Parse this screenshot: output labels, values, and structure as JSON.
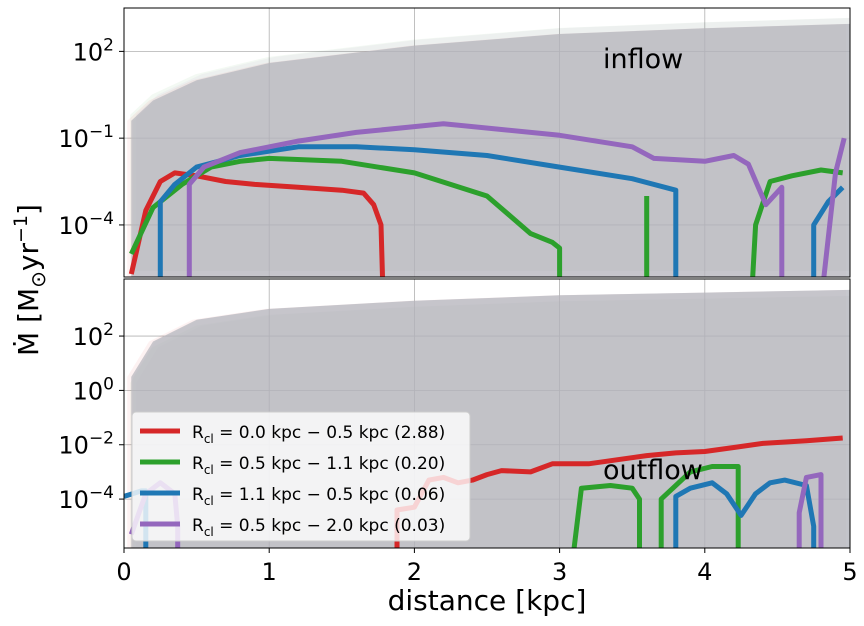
{
  "chart_data": [
    {
      "type": "line",
      "panel": "top",
      "annotation": "inflow",
      "xlim": [
        0,
        5
      ],
      "ylim_log10": [
        -5.8,
        3.5
      ],
      "yscale": "log",
      "ytick_labels": [
        {
          "exp": -4,
          "text": "10",
          "sup": "−4"
        },
        {
          "exp": -1,
          "text": "10",
          "sup": "−1"
        },
        {
          "exp": 2,
          "text": "10",
          "sup": "2"
        }
      ],
      "grid": true,
      "band": {
        "x": [
          0.05,
          0.2,
          0.5,
          1.0,
          2.0,
          3.0,
          4.0,
          5.0
        ],
        "upper_log10": [
          -0.4,
          0.3,
          1.0,
          1.6,
          2.2,
          2.6,
          2.8,
          2.95
        ],
        "lower_log10": [
          -5.8,
          -5.8,
          -5.8,
          -5.8,
          -5.8,
          -5.8,
          -5.8,
          -5.8
        ]
      },
      "series": [
        {
          "name": "R_cl = 0.0 kpc − 0.5 kpc (2.88)",
          "color": "#d62728",
          "x": [
            0.05,
            0.15,
            0.25,
            0.35,
            0.5,
            0.7,
            0.9,
            1.2,
            1.5,
            1.65,
            1.72,
            1.77,
            1.78
          ],
          "log10": [
            -5.7,
            -3.5,
            -2.5,
            -2.2,
            -2.3,
            -2.5,
            -2.6,
            -2.7,
            -2.8,
            -2.9,
            -3.3,
            -4.0,
            -5.8
          ]
        },
        {
          "name": "R_cl = 0.5 kpc − 1.1 kpc (0.20)",
          "color": "#2ca02c",
          "x": [
            0.05,
            0.2,
            0.4,
            0.6,
            0.8,
            1.0,
            1.5,
            2.0,
            2.5,
            2.8,
            2.95,
            3.0,
            3.0,
            null,
            3.6,
            3.6,
            null,
            4.33,
            4.35,
            4.45,
            4.6,
            4.8,
            4.95
          ],
          "log10": [
            -5.0,
            -3.4,
            -2.6,
            -2.0,
            -1.8,
            -1.7,
            -1.8,
            -2.2,
            -3.0,
            -4.3,
            -4.6,
            -4.8,
            -5.8,
            null,
            -3.0,
            -5.8,
            null,
            -5.8,
            -4.0,
            -2.5,
            -2.3,
            -2.1,
            -2.2
          ]
        },
        {
          "name": "R_cl = 1.1 kpc − 0.5 kpc (0.06)",
          "color": "#1f77b4",
          "x": [
            0.25,
            0.25,
            0.35,
            0.5,
            0.8,
            1.2,
            1.6,
            2.0,
            2.5,
            3.0,
            3.5,
            3.8,
            3.8,
            null,
            4.75,
            4.75,
            4.85,
            4.95
          ],
          "log10": [
            -5.8,
            -3.2,
            -2.6,
            -2.0,
            -1.6,
            -1.3,
            -1.3,
            -1.4,
            -1.6,
            -2.0,
            -2.4,
            -2.8,
            -5.8,
            null,
            -5.8,
            -4.0,
            -3.2,
            -2.7
          ]
        },
        {
          "name": "R_cl = 0.5 kpc − 2.0 kpc (0.03)",
          "color": "#9467bd",
          "x": [
            0.45,
            0.45,
            0.55,
            0.8,
            1.2,
            1.6,
            2.0,
            2.2,
            2.6,
            3.0,
            3.5,
            3.65,
            4.0,
            4.2,
            4.3,
            4.42,
            4.53,
            4.53,
            null,
            4.82,
            4.9,
            4.96
          ],
          "log10": [
            -5.8,
            -2.6,
            -2.0,
            -1.5,
            -1.1,
            -0.8,
            -0.6,
            -0.5,
            -0.7,
            -0.9,
            -1.3,
            -1.7,
            -1.8,
            -1.6,
            -1.9,
            -3.3,
            -2.7,
            -5.8,
            null,
            -5.8,
            -2.2,
            -1.0
          ]
        }
      ]
    },
    {
      "type": "line",
      "panel": "bottom",
      "annotation": "outflow",
      "xlim": [
        0,
        5
      ],
      "ylim_log10": [
        -5.8,
        4.1
      ],
      "yscale": "log",
      "yaxis_inverted": true,
      "ytick_labels": [
        {
          "exp": -4,
          "text": "10",
          "sup": "−4"
        },
        {
          "exp": -2,
          "text": "10",
          "sup": "−2"
        },
        {
          "exp": 0,
          "text": "10",
          "sup": "0"
        },
        {
          "exp": 2,
          "text": "10",
          "sup": "2"
        }
      ],
      "xtick_labels": [
        "0",
        "1",
        "2",
        "3",
        "4",
        "5"
      ],
      "xlabel": "distance [kpc]",
      "grid": true,
      "band": {
        "x": [
          0.05,
          0.2,
          0.5,
          1.0,
          2.0,
          3.0,
          4.0,
          5.0
        ],
        "upper_log10": [
          0.5,
          1.8,
          2.6,
          3.0,
          3.3,
          3.5,
          3.6,
          3.7
        ],
        "lower_log10": [
          -5.8,
          -5.8,
          -5.8,
          -5.8,
          -5.8,
          -5.8,
          -5.8,
          -5.8
        ]
      },
      "series": [
        {
          "name": "R_cl = 0.0 kpc − 0.5 kpc (2.88)",
          "color": "#d62728",
          "x": [
            1.88,
            1.88,
            2.0,
            2.1,
            2.2,
            2.3,
            2.4,
            2.5,
            2.6,
            2.8,
            2.95,
            3.2,
            3.4,
            3.6,
            3.8,
            4.0,
            4.2,
            4.4,
            4.7,
            4.95
          ],
          "log10": [
            -5.8,
            -4.4,
            -4.3,
            -3.3,
            -3.2,
            -3.4,
            -3.3,
            -3.1,
            -2.95,
            -3.0,
            -2.7,
            -2.7,
            -2.55,
            -2.4,
            -2.3,
            -2.25,
            -2.1,
            -1.95,
            -1.85,
            -1.75
          ]
        },
        {
          "name": "R_cl = 0.5 kpc − 1.1 kpc (0.20)",
          "color": "#2ca02c",
          "x": [
            3.1,
            3.15,
            3.35,
            3.5,
            3.55,
            3.55,
            null,
            3.7,
            3.7,
            3.9,
            4.05,
            4.23,
            4.23
          ],
          "log10": [
            -5.8,
            -3.6,
            -3.5,
            -3.6,
            -4.0,
            -5.8,
            null,
            -5.8,
            -4.0,
            -3.0,
            -2.8,
            -2.8,
            -5.8
          ]
        },
        {
          "name": "R_cl = 1.1 kpc − 0.5 kpc (0.06)",
          "color": "#1f77b4",
          "x": [
            0.0,
            0.12,
            0.15,
            0.15,
            null,
            3.8,
            3.8,
            3.9,
            4.05,
            4.15,
            4.25,
            4.35,
            4.45,
            4.55,
            4.7,
            4.75,
            4.75
          ],
          "log10": [
            -3.9,
            -3.7,
            -3.7,
            -5.8,
            null,
            -5.8,
            -3.9,
            -3.6,
            -3.4,
            -3.8,
            -4.6,
            -3.8,
            -3.4,
            -3.3,
            -3.5,
            -5.0,
            -5.8
          ]
        },
        {
          "name": "R_cl = 0.5 kpc − 2.0 kpc (0.03)",
          "color": "#9467bd",
          "x": [
            0.05,
            0.15,
            0.25,
            0.35,
            0.37,
            0.37,
            null,
            4.65,
            4.65,
            4.7,
            4.8,
            4.8
          ],
          "log10": [
            -5.3,
            -3.8,
            -3.4,
            -3.8,
            -5.0,
            -5.8,
            null,
            -5.8,
            -4.5,
            -3.2,
            -3.1,
            -5.8
          ]
        }
      ],
      "legend_placement": "lower-left"
    }
  ],
  "ylabel": {
    "main": "Ṁ [M",
    "sun_sub": "⊙",
    "unit": "yr",
    "unit_sup": "−1",
    "close": "]"
  },
  "legend": [
    {
      "label": "R_cl = 0.0 kpc − 0.5 kpc (2.88)",
      "color": "#d62728"
    },
    {
      "label": "R_cl = 0.5 kpc − 1.1 kpc (0.20)",
      "color": "#2ca02c"
    },
    {
      "label": "R_cl = 1.1 kpc − 0.5 kpc (0.06)",
      "color": "#1f77b4"
    },
    {
      "label": "R_cl = 0.5 kpc − 2.0 kpc (0.03)",
      "color": "#9467bd"
    }
  ],
  "colors": {
    "band": "#b8b8bf",
    "grid": "#b0b0b0"
  }
}
